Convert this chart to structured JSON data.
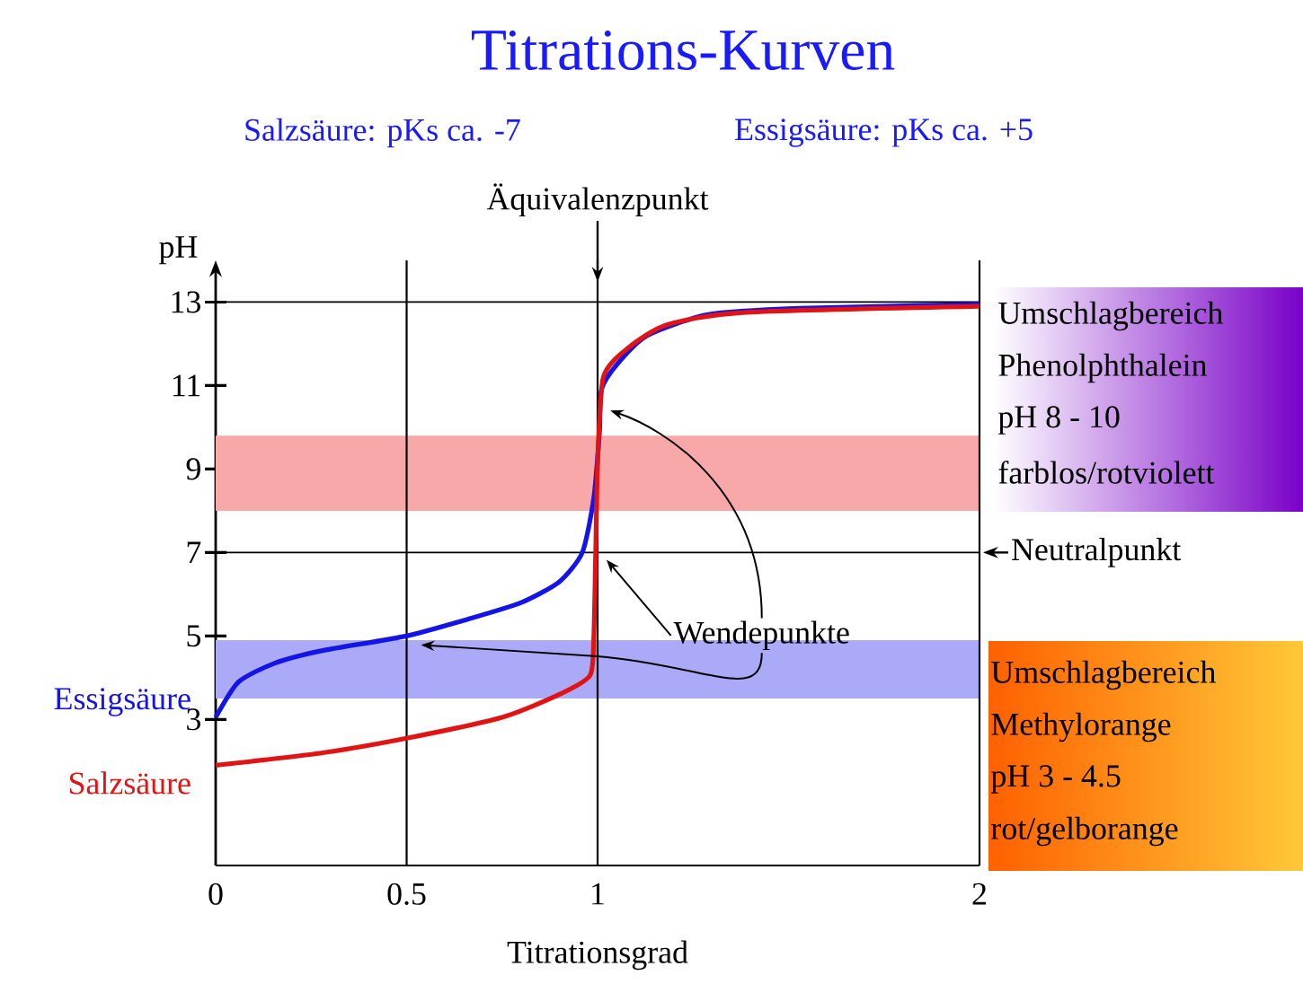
{
  "chart_data": {
    "type": "line",
    "title": "Titrations-Kurven",
    "subtitle": "Salzsäure: pKs ca.  -7",
    "xlabel": "Titrationsgrad",
    "ylabel": "pH",
    "annotations": [
      "Essigsäure: pKs ca. +5",
      "Wendepunkte",
      "Umschlagbereich",
      "Phenolphthalein",
      "pH 8 - 10",
      "farblos/rotviolett",
      "Umschlagbereich",
      "Methylorange",
      "pH 3 - 4.5",
      "rot/gelborange"
    ],
    "series": [
      {
        "name": "Essigsäure",
        "color": "#1414e6",
        "x": [
          0,
          0.06,
          0.155,
          0.28,
          0.5,
          0.66,
          0.8,
          0.9,
          0.96,
          0.99,
          1.005,
          1.01,
          1.05,
          1.13,
          1.29,
          1.53,
          2.0
        ],
        "values": [
          3.05,
          3.9,
          4.35,
          4.65,
          5.0,
          5.4,
          5.8,
          6.3,
          7.0,
          8.3,
          9.9,
          10.9,
          11.5,
          12.2,
          12.7,
          12.85,
          12.95
        ]
      },
      {
        "name": "Salzsäure",
        "color": "#e01414",
        "x": [
          0,
          0.28,
          0.5,
          0.75,
          0.9,
          0.98,
          0.99,
          0.995,
          1.0,
          1.015,
          1.08,
          1.18,
          1.38,
          2.0
        ],
        "values": [
          1.9,
          2.2,
          2.55,
          3.05,
          3.6,
          4.05,
          4.95,
          7.0,
          9.1,
          11.2,
          11.9,
          12.45,
          12.75,
          12.9
        ]
      }
    ],
    "xlim": [
      0,
      2
    ],
    "ylim": [
      -0.5,
      14
    ],
    "xticks": [
      0,
      0.5,
      1,
      2
    ],
    "yticks": [
      3,
      5,
      7,
      9,
      11,
      13
    ],
    "ref_lines": [
      {
        "axis": "x",
        "value": 0.5
      },
      {
        "axis": "x",
        "value": 1,
        "label": "Äquivalenzpunkt"
      },
      {
        "axis": "y",
        "value": 7,
        "label": "Neutralpunkt"
      },
      {
        "axis": "y",
        "value": 13
      }
    ],
    "bands": [
      {
        "axis": "y",
        "from": 8,
        "to": 9.8,
        "color": "#f8a8a8"
      },
      {
        "axis": "y",
        "from": 3.5,
        "to": 4.9,
        "color": "#aaaaf8"
      }
    ],
    "grid": false,
    "legend": false,
    "marker": "none",
    "line_style": "solid"
  }
}
